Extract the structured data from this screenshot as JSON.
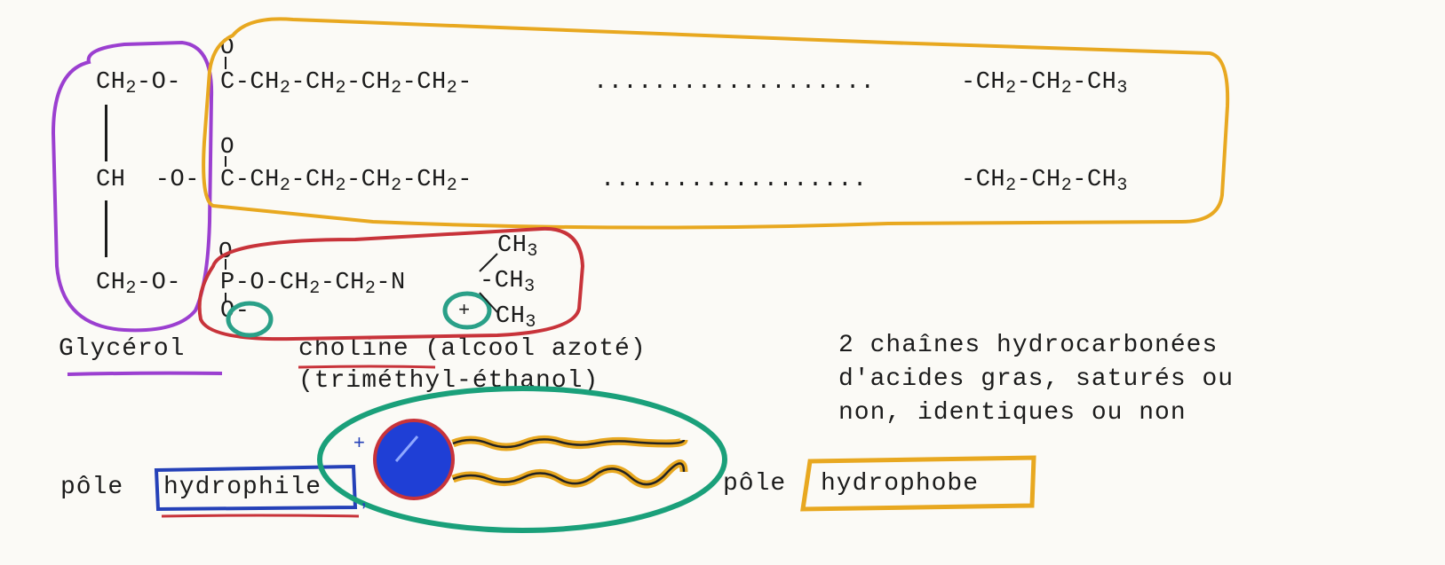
{
  "formula": {
    "row1": {
      "glycerol_part": "CH2-O-",
      "chain": "C-CH2-CH2-CH2-CH2-",
      "dots": "...................",
      "end": "-CH2-CH2-CH3"
    },
    "row2": {
      "glycerol_part": "CH  -O-",
      "chain": "C-CH2-CH2-CH2-CH2-",
      "dots": "..................",
      "end": "-CH2-CH2-CH3"
    },
    "row3": {
      "glycerol_part": "CH2-O-",
      "phosphate_chain": "P-O-CH2-CH2-N",
      "methyl_top": "CH3",
      "methyl_mid": "CH3",
      "methyl_bot": "CH3",
      "oxygen_minus": "O-",
      "charge_plus": "+"
    },
    "carbonyl_o": "O",
    "phosphoryl_o": "O"
  },
  "labels": {
    "glycerol": "Glycérol",
    "choline_line1": "choline (alcool azoté)",
    "choline_line2": "(triméthyl-éthanol)",
    "chains_line1": "2 chaînes hydrocarbonées",
    "chains_line2": "d'acides gras, saturés ou",
    "chains_line3": "non, identiques ou non",
    "pole_hydrophile_prefix": "pôle",
    "pole_hydrophile_word": "hydrophile",
    "pole_hydrophobe_prefix": "pôle",
    "pole_hydrophobe_word": "hydrophobe"
  },
  "colors": {
    "glycerol_outline": "#9b3fd0",
    "fatty_acid_outline": "#e8a820",
    "choline_outline": "#c8333a",
    "charge_outline": "#2aa088",
    "hydrophile_box": "#2541b8",
    "head_fill": "#1f3fd6",
    "phospholipid_outline": "#1aa07a"
  }
}
